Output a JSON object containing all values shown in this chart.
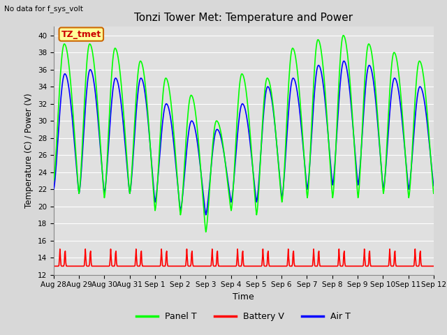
{
  "title": "Tonzi Tower Met: Temperature and Power",
  "ylabel": "Temperature (C) / Power (V)",
  "xlabel": "Time",
  "ylim": [
    12,
    41
  ],
  "yticks": [
    12,
    14,
    16,
    18,
    20,
    22,
    24,
    26,
    28,
    30,
    32,
    34,
    36,
    38,
    40
  ],
  "top_label": "No data for f_sys_volt",
  "annotation_label": "TZ_tmet",
  "annotation_color": "#cc0000",
  "annotation_bg": "#ffff99",
  "annotation_border": "#cc6600",
  "x_tick_labels": [
    "Aug 28",
    "Aug 29",
    "Aug 30",
    "Aug 31",
    "Sep 1",
    "Sep 2",
    "Sep 3",
    "Sep 4",
    "Sep 5",
    "Sep 6",
    "Sep 7",
    "Sep 8",
    "Sep 9",
    "Sep 10",
    "Sep 11",
    "Sep 12"
  ],
  "panel_color": "#00ff00",
  "battery_color": "#ff0000",
  "air_color": "#0000ff",
  "bg_color": "#e0e0e0",
  "grid_color": "#ffffff",
  "legend_labels": [
    "Panel T",
    "Battery V",
    "Air T"
  ],
  "num_days": 15
}
